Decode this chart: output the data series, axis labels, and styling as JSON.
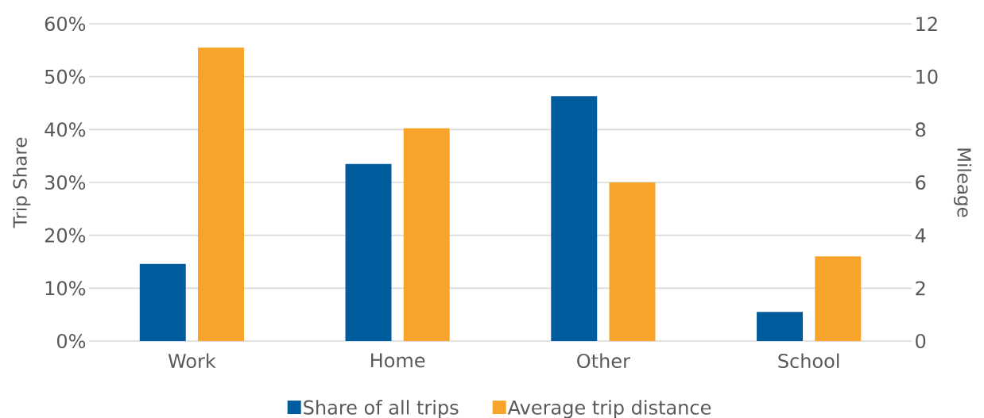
{
  "chart_data": {
    "type": "bar",
    "categories": [
      "Work",
      "Home",
      "Other",
      "School"
    ],
    "ylabel": "Trip Share",
    "y2label": "Mileage",
    "series": [
      {
        "name": "Share of all trips",
        "color": "#005c9c",
        "values": [
          14.6,
          33.5,
          46.3,
          5.5
        ]
      },
      {
        "name": "Average trip distance",
        "color": "#f8a42a",
        "values": [
          11.1,
          8.05,
          6.0,
          3.2
        ],
        "axis": "y2"
      }
    ],
    "ylim": [
      0,
      60
    ],
    "yticks": [
      {
        "value": 0,
        "label": "0%"
      },
      {
        "value": 10,
        "label": "10%"
      },
      {
        "value": 20,
        "label": "20%"
      },
      {
        "value": 30,
        "label": "30%"
      },
      {
        "value": 40,
        "label": "40%"
      },
      {
        "value": 50,
        "label": "50%"
      },
      {
        "value": 60,
        "label": "60%"
      }
    ],
    "y2lim": [
      0,
      12
    ],
    "y2ticks": [
      0,
      2,
      4,
      6,
      8,
      10,
      12
    ],
    "grid": "y",
    "legend": "bottom"
  }
}
